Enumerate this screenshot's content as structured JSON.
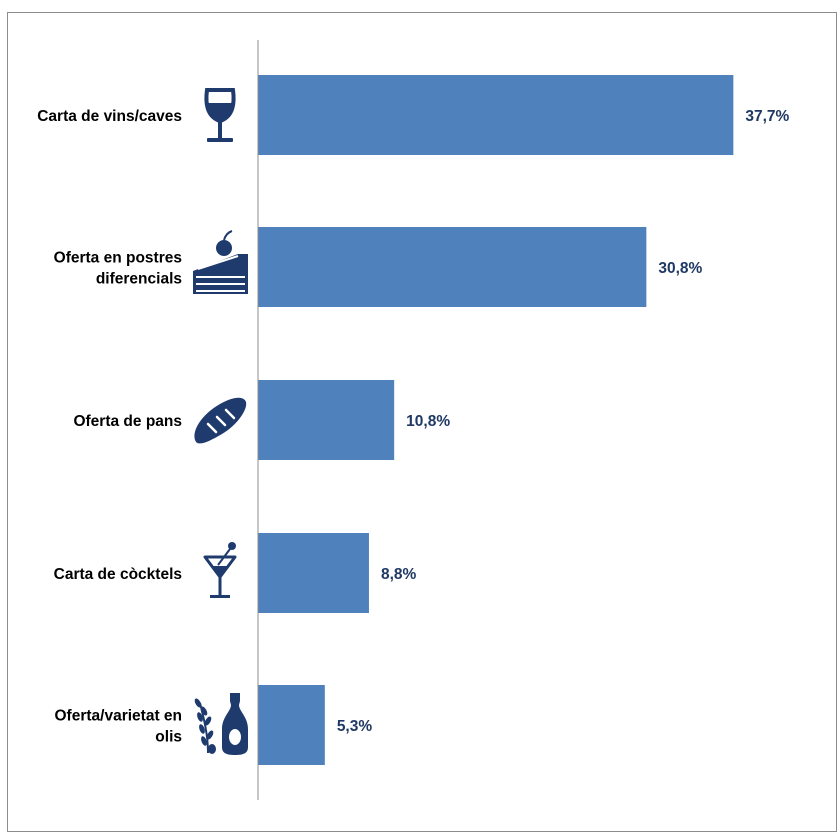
{
  "chart_data": {
    "type": "bar",
    "orientation": "horizontal",
    "categories": [
      [
        "Carta de vins/caves"
      ],
      [
        "Oferta en postres",
        "diferencials"
      ],
      [
        "Oferta de pans"
      ],
      [
        "Carta de còcktels"
      ],
      [
        "Oferta/varietat en",
        "olis"
      ]
    ],
    "values": [
      37.7,
      30.8,
      10.8,
      8.8,
      5.3
    ],
    "value_labels": [
      "37,7%",
      "30,8%",
      "10,8%",
      "8,8%",
      "5,3%"
    ],
    "icons": [
      "wine-glass-icon",
      "cake-slice-icon",
      "bread-icon",
      "cocktail-icon",
      "olive-oil-icon"
    ],
    "xlim": [
      0,
      46
    ],
    "grid": false,
    "legend": "none",
    "colors": {
      "bar": "#4f81bd",
      "value_label": "#1f3864",
      "icon": "#1f3b6e",
      "axis": "#8c8c8c"
    }
  }
}
